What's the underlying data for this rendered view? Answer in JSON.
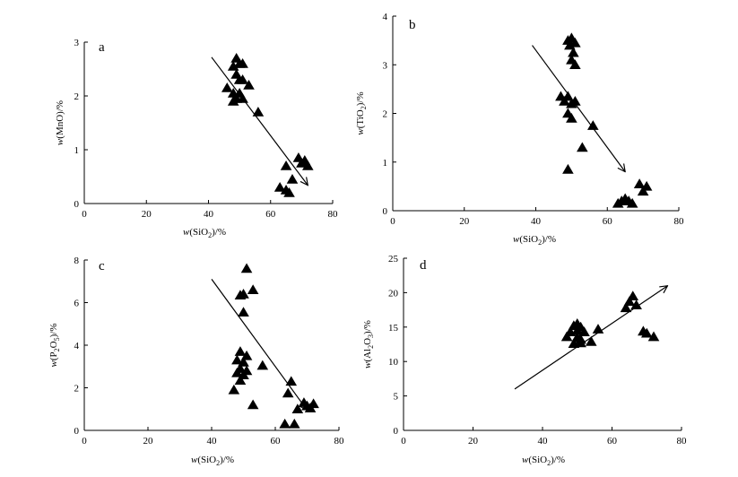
{
  "chart_data": [
    {
      "type": "scatter",
      "panel_label": "a",
      "xlabel_parts": [
        "w",
        "(SiO",
        "2",
        ")/%"
      ],
      "ylabel_parts": [
        "w",
        "(MnO)/%"
      ],
      "xlim": [
        0,
        80
      ],
      "xticks": [
        0,
        20,
        40,
        60,
        80
      ],
      "ylim": [
        0,
        3
      ],
      "yticks": [
        0,
        1,
        2,
        3
      ],
      "grid": false,
      "marker": "filled-triangle",
      "points": [
        [
          49,
          2.7
        ],
        [
          48,
          2.55
        ],
        [
          50,
          2.6
        ],
        [
          51,
          2.6
        ],
        [
          49,
          2.4
        ],
        [
          50,
          2.3
        ],
        [
          51,
          2.3
        ],
        [
          53,
          2.2
        ],
        [
          46,
          2.15
        ],
        [
          48,
          2.05
        ],
        [
          50,
          2.05
        ],
        [
          49,
          1.95
        ],
        [
          51,
          1.95
        ],
        [
          48,
          1.9
        ],
        [
          56,
          1.7
        ],
        [
          69,
          0.85
        ],
        [
          71,
          0.8
        ],
        [
          70,
          0.75
        ],
        [
          72,
          0.7
        ],
        [
          65,
          0.7
        ],
        [
          67,
          0.45
        ],
        [
          63,
          0.3
        ],
        [
          65,
          0.25
        ],
        [
          66,
          0.2
        ]
      ],
      "trend_arrow": {
        "from": [
          41,
          2.72
        ],
        "to": [
          72,
          0.34
        ]
      }
    },
    {
      "type": "scatter",
      "panel_label": "b",
      "xlabel_parts": [
        "w",
        "(SiO",
        "2",
        ")/%"
      ],
      "ylabel_parts": [
        "w",
        "(TiO",
        "2",
        ")/%"
      ],
      "xlim": [
        0,
        80
      ],
      "xticks": [
        0,
        20,
        40,
        60,
        80
      ],
      "ylim": [
        0,
        4
      ],
      "yticks": [
        0,
        1,
        2,
        3,
        4
      ],
      "grid": false,
      "marker": "filled-triangle",
      "points": [
        [
          49,
          3.5
        ],
        [
          50,
          3.55
        ],
        [
          51,
          3.45
        ],
        [
          49.5,
          3.4
        ],
        [
          50.5,
          3.25
        ],
        [
          50,
          3.1
        ],
        [
          51,
          3.0
        ],
        [
          47,
          2.35
        ],
        [
          49,
          2.35
        ],
        [
          48,
          2.25
        ],
        [
          50,
          2.2
        ],
        [
          51,
          2.25
        ],
        [
          49,
          2.0
        ],
        [
          50,
          1.9
        ],
        [
          56,
          1.75
        ],
        [
          53,
          1.3
        ],
        [
          49,
          0.85
        ],
        [
          69,
          0.55
        ],
        [
          71,
          0.5
        ],
        [
          70,
          0.4
        ],
        [
          65,
          0.25
        ],
        [
          64,
          0.2
        ],
        [
          66,
          0.2
        ],
        [
          63,
          0.15
        ],
        [
          67,
          0.15
        ]
      ],
      "trend_arrow": {
        "from": [
          39,
          3.4
        ],
        "to": [
          65,
          0.8
        ]
      }
    },
    {
      "type": "scatter",
      "panel_label": "c",
      "xlabel_parts": [
        "w",
        "(SiO",
        "2",
        ")/%"
      ],
      "ylabel_parts": [
        "w",
        "(P",
        "2",
        "O",
        "5",
        ")/%"
      ],
      "xlim": [
        0,
        80
      ],
      "xticks": [
        0,
        20,
        40,
        60,
        80
      ],
      "ylim": [
        0,
        8
      ],
      "yticks": [
        0,
        2,
        4,
        6,
        8
      ],
      "grid": false,
      "marker": "filled-triangle",
      "points": [
        [
          51,
          7.6
        ],
        [
          53,
          6.6
        ],
        [
          50,
          6.4
        ],
        [
          49,
          6.35
        ],
        [
          50,
          5.55
        ],
        [
          49,
          3.7
        ],
        [
          51,
          3.5
        ],
        [
          48,
          3.3
        ],
        [
          50,
          3.2
        ],
        [
          49,
          2.9
        ],
        [
          51,
          2.8
        ],
        [
          48,
          2.7
        ],
        [
          50,
          2.6
        ],
        [
          49,
          2.35
        ],
        [
          56,
          3.05
        ],
        [
          47,
          1.9
        ],
        [
          53,
          1.2
        ],
        [
          65,
          2.3
        ],
        [
          64,
          1.75
        ],
        [
          72,
          1.25
        ],
        [
          69,
          1.3
        ],
        [
          70,
          1.15
        ],
        [
          71,
          1.05
        ],
        [
          67,
          1.0
        ],
        [
          63,
          0.3
        ],
        [
          66,
          0.3
        ]
      ],
      "trend_arrow": {
        "from": [
          40,
          7.1
        ],
        "to": [
          70,
          0.95
        ]
      }
    },
    {
      "type": "scatter",
      "panel_label": "d",
      "xlabel_parts": [
        "w",
        "(SiO",
        "2",
        ")/%"
      ],
      "ylabel_parts": [
        "w",
        "(Al",
        "2",
        "O",
        "3",
        ")/%"
      ],
      "xlim": [
        0,
        80
      ],
      "xticks": [
        0,
        20,
        40,
        60,
        80
      ],
      "ylim": [
        0,
        25
      ],
      "yticks": [
        0,
        5,
        10,
        15,
        20,
        25
      ],
      "grid": false,
      "marker": "filled-triangle",
      "points": [
        [
          50,
          15.5
        ],
        [
          49,
          15.2
        ],
        [
          51,
          15.0
        ],
        [
          48,
          14.3
        ],
        [
          50,
          14.5
        ],
        [
          52,
          14.3
        ],
        [
          47,
          13.6
        ],
        [
          50,
          13.5
        ],
        [
          56,
          14.7
        ],
        [
          51,
          13.2
        ],
        [
          54,
          12.9
        ],
        [
          49,
          12.6
        ],
        [
          51,
          12.7
        ],
        [
          66,
          19.5
        ],
        [
          65,
          18.7
        ],
        [
          67,
          18.2
        ],
        [
          64,
          17.8
        ],
        [
          69,
          14.4
        ],
        [
          70,
          14.1
        ],
        [
          72,
          13.6
        ]
      ],
      "trend_arrow": {
        "from": [
          32,
          6.0
        ],
        "to": [
          76,
          21.0
        ]
      }
    }
  ]
}
